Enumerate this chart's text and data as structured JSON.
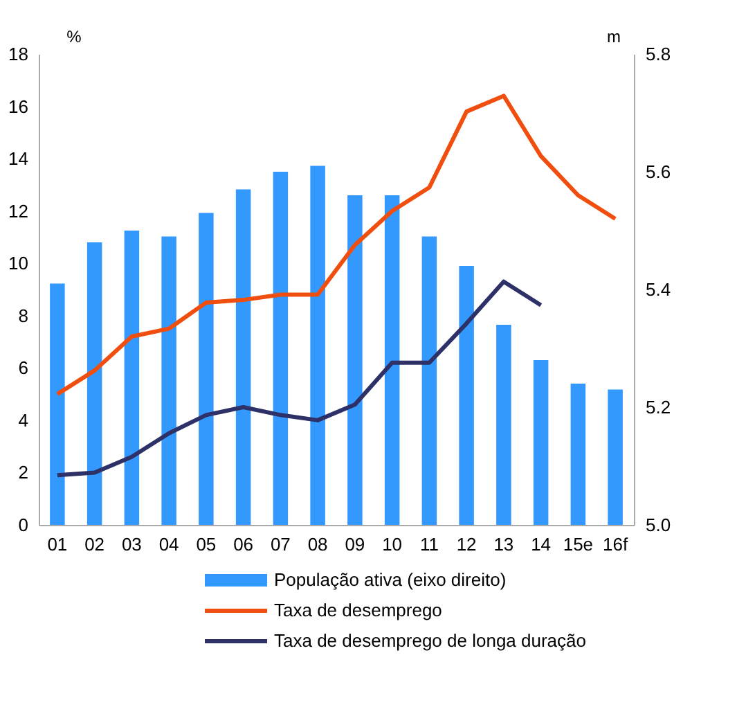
{
  "chart_data": {
    "type": "bar",
    "categories": [
      "01",
      "02",
      "03",
      "04",
      "05",
      "06",
      "07",
      "08",
      "09",
      "10",
      "11",
      "12",
      "13",
      "14",
      "15e",
      "16f"
    ],
    "ylabel": "%",
    "y2label": "m",
    "ylim": [
      0,
      18
    ],
    "yticks": [
      0,
      2,
      4,
      6,
      8,
      10,
      12,
      14,
      16,
      18
    ],
    "y2lim": [
      5.0,
      5.8
    ],
    "y2ticks": [
      {
        "value": 5.0,
        "label": "5.0"
      },
      {
        "value": 5.2,
        "label": "5.2"
      },
      {
        "value": 5.4,
        "label": "5.4"
      },
      {
        "value": 5.6,
        "label": "5.6"
      },
      {
        "value": 5.8,
        "label": "5.8"
      }
    ],
    "legend": "bottom",
    "grid": false,
    "series": [
      {
        "name": "População ativa (eixo direito)",
        "type": "bar",
        "axis": "y2",
        "color": "#3399ff",
        "values": [
          5.41,
          5.48,
          5.5,
          5.49,
          5.53,
          5.57,
          5.6,
          5.61,
          5.56,
          5.56,
          5.49,
          5.44,
          5.34,
          5.28,
          5.24,
          5.23
        ]
      },
      {
        "name": "Taxa de desemprego",
        "type": "line",
        "color": "#f04e0f",
        "values": [
          5.0,
          5.9,
          7.2,
          7.5,
          8.5,
          8.6,
          8.8,
          8.8,
          10.7,
          12.0,
          12.9,
          15.8,
          16.4,
          14.1,
          12.6,
          11.7
        ]
      },
      {
        "name": "Taxa de desemprego de longa duração",
        "type": "line",
        "color": "#2e3168",
        "values": [
          1.9,
          2.0,
          2.6,
          3.5,
          4.2,
          4.5,
          4.2,
          4.0,
          4.6,
          6.2,
          6.2,
          7.7,
          9.3,
          8.4,
          null,
          null
        ]
      }
    ]
  }
}
